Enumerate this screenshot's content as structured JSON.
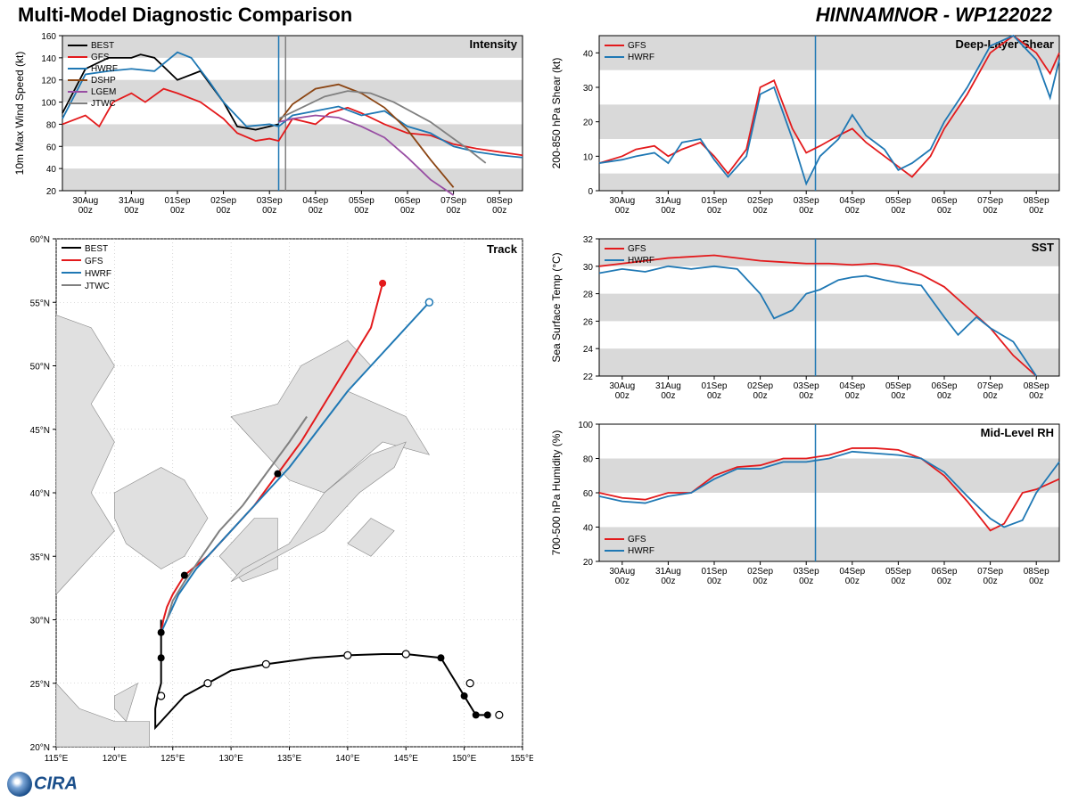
{
  "header": {
    "left": "Multi-Model Diagnostic Comparison",
    "right": "HINNAMNOR - WP122022"
  },
  "logo_text": "IRA",
  "x_dates": [
    "30Aug",
    "31Aug",
    "01Sep",
    "02Sep",
    "03Sep",
    "04Sep",
    "05Sep",
    "06Sep",
    "07Sep",
    "08Sep"
  ],
  "x_sub": "00z",
  "now_index": 4.2,
  "colors": {
    "BEST": "#000000",
    "GFS": "#e31a1c",
    "HWRF": "#1f78b4",
    "DSHP": "#8b4513",
    "LGEM": "#984ea3",
    "JTWC": "#808080",
    "grid": "#d0d0d0",
    "band": "#d9d9d9",
    "land": "#e0e0e0",
    "text": "#000000",
    "axis": "#000000"
  },
  "intensity": {
    "title": "Intensity",
    "ylabel": "10m Max Wind Speed (kt)",
    "ylim": [
      20,
      160
    ],
    "ytick": 20,
    "legend": [
      "BEST",
      "GFS",
      "HWRF",
      "DSHP",
      "LGEM",
      "JTWC"
    ],
    "bands": [
      [
        20,
        40
      ],
      [
        60,
        80
      ],
      [
        100,
        120
      ],
      [
        140,
        160
      ]
    ],
    "series": {
      "BEST": [
        [
          -0.5,
          90
        ],
        [
          0,
          130
        ],
        [
          0.5,
          140
        ],
        [
          1,
          140
        ],
        [
          1.2,
          143
        ],
        [
          1.5,
          140
        ],
        [
          2,
          120
        ],
        [
          2.5,
          128
        ],
        [
          3,
          100
        ],
        [
          3.3,
          78
        ],
        [
          3.7,
          75
        ],
        [
          4,
          78
        ],
        [
          4.2,
          80
        ]
      ],
      "GFS": [
        [
          -0.5,
          80
        ],
        [
          0,
          88
        ],
        [
          0.3,
          78
        ],
        [
          0.6,
          100
        ],
        [
          1,
          108
        ],
        [
          1.3,
          100
        ],
        [
          1.7,
          112
        ],
        [
          2,
          108
        ],
        [
          2.5,
          100
        ],
        [
          3,
          85
        ],
        [
          3.3,
          72
        ],
        [
          3.7,
          65
        ],
        [
          4,
          67
        ],
        [
          4.2,
          65
        ],
        [
          4.5,
          85
        ],
        [
          5,
          80
        ],
        [
          5.3,
          90
        ],
        [
          5.7,
          95
        ],
        [
          6,
          90
        ],
        [
          6.5,
          80
        ],
        [
          7,
          72
        ],
        [
          7.5,
          70
        ],
        [
          8,
          62
        ],
        [
          8.5,
          58
        ],
        [
          9,
          55
        ],
        [
          9.5,
          52
        ]
      ],
      "HWRF": [
        [
          -0.5,
          85
        ],
        [
          0,
          125
        ],
        [
          0.5,
          128
        ],
        [
          1,
          130
        ],
        [
          1.5,
          128
        ],
        [
          2,
          145
        ],
        [
          2.3,
          140
        ],
        [
          2.7,
          118
        ],
        [
          3,
          100
        ],
        [
          3.5,
          78
        ],
        [
          4,
          80
        ],
        [
          4.2,
          78
        ],
        [
          4.5,
          88
        ],
        [
          5,
          92
        ],
        [
          5.5,
          96
        ],
        [
          6,
          88
        ],
        [
          6.5,
          92
        ],
        [
          7,
          78
        ],
        [
          7.5,
          72
        ],
        [
          8,
          60
        ],
        [
          8.5,
          55
        ],
        [
          9,
          52
        ],
        [
          9.5,
          50
        ]
      ],
      "DSHP": [
        [
          4.2,
          82
        ],
        [
          4.5,
          98
        ],
        [
          5,
          112
        ],
        [
          5.5,
          116
        ],
        [
          6,
          108
        ],
        [
          6.5,
          95
        ],
        [
          7,
          75
        ],
        [
          7.5,
          48
        ],
        [
          8,
          23
        ]
      ],
      "LGEM": [
        [
          4.2,
          82
        ],
        [
          4.5,
          85
        ],
        [
          5,
          88
        ],
        [
          5.5,
          86
        ],
        [
          6,
          78
        ],
        [
          6.5,
          68
        ],
        [
          7,
          50
        ],
        [
          7.5,
          30
        ],
        [
          8,
          16
        ]
      ],
      "JTWC": [
        [
          4.2,
          85
        ],
        [
          4.7,
          95
        ],
        [
          5.2,
          105
        ],
        [
          5.7,
          110
        ],
        [
          6.2,
          108
        ],
        [
          6.7,
          100
        ],
        [
          7.5,
          82
        ],
        [
          8.3,
          58
        ],
        [
          8.7,
          45
        ]
      ]
    },
    "label_fontsize": 12
  },
  "shear": {
    "title": "Deep-Layer Shear",
    "ylabel": "200-850 hPa Shear (kt)",
    "ylim": [
      0,
      45
    ],
    "ytick": 10,
    "legend": [
      "GFS",
      "HWRF"
    ],
    "bands": [
      [
        0,
        5
      ],
      [
        15,
        25
      ],
      [
        35,
        45
      ]
    ],
    "series": {
      "GFS": [
        [
          -0.5,
          8
        ],
        [
          0,
          10
        ],
        [
          0.3,
          12
        ],
        [
          0.7,
          13
        ],
        [
          1,
          10
        ],
        [
          1.3,
          12
        ],
        [
          1.7,
          14
        ],
        [
          2,
          10
        ],
        [
          2.3,
          5
        ],
        [
          2.7,
          12
        ],
        [
          3,
          30
        ],
        [
          3.3,
          32
        ],
        [
          3.7,
          18
        ],
        [
          4,
          11
        ],
        [
          4.3,
          13
        ],
        [
          4.7,
          16
        ],
        [
          5,
          18
        ],
        [
          5.3,
          14
        ],
        [
          5.7,
          10
        ],
        [
          6,
          7
        ],
        [
          6.3,
          4
        ],
        [
          6.7,
          10
        ],
        [
          7,
          18
        ],
        [
          7.5,
          28
        ],
        [
          8,
          40
        ],
        [
          8.5,
          45
        ],
        [
          9,
          40
        ],
        [
          9.3,
          34
        ],
        [
          9.5,
          40
        ]
      ],
      "HWRF": [
        [
          -0.5,
          8
        ],
        [
          0,
          9
        ],
        [
          0.3,
          10
        ],
        [
          0.7,
          11
        ],
        [
          1,
          8
        ],
        [
          1.3,
          14
        ],
        [
          1.7,
          15
        ],
        [
          2,
          9
        ],
        [
          2.3,
          4
        ],
        [
          2.7,
          10
        ],
        [
          3,
          28
        ],
        [
          3.3,
          30
        ],
        [
          3.7,
          15
        ],
        [
          4,
          2
        ],
        [
          4.3,
          10
        ],
        [
          4.7,
          15
        ],
        [
          5,
          22
        ],
        [
          5.3,
          16
        ],
        [
          5.7,
          12
        ],
        [
          6,
          6
        ],
        [
          6.3,
          8
        ],
        [
          6.7,
          12
        ],
        [
          7,
          20
        ],
        [
          7.5,
          30
        ],
        [
          8,
          42
        ],
        [
          8.5,
          45
        ],
        [
          9,
          38
        ],
        [
          9.3,
          27
        ],
        [
          9.5,
          38
        ]
      ]
    }
  },
  "sst": {
    "title": "SST",
    "ylabel": "Sea Surface Temp (°C)",
    "ylim": [
      22,
      32
    ],
    "ytick": 2,
    "legend": [
      "GFS",
      "HWRF"
    ],
    "bands": [
      [
        22,
        24
      ],
      [
        26,
        28
      ],
      [
        30,
        32
      ]
    ],
    "series": {
      "GFS": [
        [
          -0.5,
          30
        ],
        [
          0,
          30.2
        ],
        [
          1,
          30.6
        ],
        [
          2,
          30.8
        ],
        [
          3,
          30.4
        ],
        [
          3.5,
          30.3
        ],
        [
          4,
          30.2
        ],
        [
          4.5,
          30.2
        ],
        [
          5,
          30.1
        ],
        [
          5.5,
          30.2
        ],
        [
          6,
          30
        ],
        [
          6.5,
          29.4
        ],
        [
          7,
          28.5
        ],
        [
          7.5,
          27
        ],
        [
          8,
          25.5
        ],
        [
          8.5,
          23.5
        ],
        [
          9,
          22
        ]
      ],
      "HWRF": [
        [
          -0.5,
          29.5
        ],
        [
          0,
          29.8
        ],
        [
          0.5,
          29.6
        ],
        [
          1,
          30
        ],
        [
          1.5,
          29.8
        ],
        [
          2,
          30
        ],
        [
          2.5,
          29.8
        ],
        [
          3,
          28
        ],
        [
          3.3,
          26.2
        ],
        [
          3.7,
          26.8
        ],
        [
          4,
          28
        ],
        [
          4.3,
          28.3
        ],
        [
          4.7,
          29
        ],
        [
          5,
          29.2
        ],
        [
          5.3,
          29.3
        ],
        [
          5.7,
          29
        ],
        [
          6,
          28.8
        ],
        [
          6.5,
          28.6
        ],
        [
          7,
          26.3
        ],
        [
          7.3,
          25
        ],
        [
          7.7,
          26.3
        ],
        [
          8,
          25.5
        ],
        [
          8.5,
          24.5
        ],
        [
          9,
          22
        ]
      ]
    }
  },
  "rh": {
    "title": "Mid-Level RH",
    "ylabel": "700-500 hPa Humidity (%)",
    "ylim": [
      20,
      100
    ],
    "ytick": 20,
    "legend": [
      "GFS",
      "HWRF"
    ],
    "legend_pos": "bottom-left",
    "bands": [
      [
        20,
        40
      ],
      [
        60,
        80
      ]
    ],
    "series": {
      "GFS": [
        [
          -0.5,
          60
        ],
        [
          0,
          57
        ],
        [
          0.5,
          56
        ],
        [
          1,
          60
        ],
        [
          1.5,
          60
        ],
        [
          2,
          70
        ],
        [
          2.5,
          75
        ],
        [
          3,
          76
        ],
        [
          3.5,
          80
        ],
        [
          4,
          80
        ],
        [
          4.5,
          82
        ],
        [
          5,
          86
        ],
        [
          5.5,
          86
        ],
        [
          6,
          85
        ],
        [
          6.5,
          80
        ],
        [
          7,
          70
        ],
        [
          7.5,
          55
        ],
        [
          8,
          38
        ],
        [
          8.3,
          42
        ],
        [
          8.7,
          60
        ],
        [
          9,
          62
        ],
        [
          9.5,
          68
        ]
      ],
      "HWRF": [
        [
          -0.5,
          58
        ],
        [
          0,
          55
        ],
        [
          0.5,
          54
        ],
        [
          1,
          58
        ],
        [
          1.5,
          60
        ],
        [
          2,
          68
        ],
        [
          2.5,
          74
        ],
        [
          3,
          74
        ],
        [
          3.5,
          78
        ],
        [
          4,
          78
        ],
        [
          4.5,
          80
        ],
        [
          5,
          84
        ],
        [
          5.5,
          83
        ],
        [
          6,
          82
        ],
        [
          6.5,
          80
        ],
        [
          7,
          72
        ],
        [
          7.5,
          58
        ],
        [
          8,
          45
        ],
        [
          8.3,
          40
        ],
        [
          8.7,
          44
        ],
        [
          9,
          60
        ],
        [
          9.5,
          78
        ]
      ]
    }
  },
  "track": {
    "title": "Track",
    "xlabel": "",
    "ylabel": "",
    "xlim": [
      115,
      155
    ],
    "ylim": [
      20,
      60
    ],
    "xtick": 5,
    "ytick": 5,
    "legend": [
      "BEST",
      "GFS",
      "HWRF",
      "JTWC"
    ],
    "land_paths": [
      "M115,54 L118,53 L120,50 L118,47 L120,44 L118,40 L120,37 L117,34 L115,32 Z",
      "M120,40 L124,42 L126,41 L128,38 L126,35 L124,34 L121,36 L120,38 Z",
      "M129,35 L132,38 L134,38 L134,34 L131,33 Z",
      "M130,46 L134,47 L136,50 L140,52 L142,50 L140,48 L145,46 L147,43 L143,44 L138,40 L135,41 L132,44 Z",
      "M130,33 L134,35 L138,37 L141,40 L144,42 L145,44 L142,43 L138,40 L135,36 L131,34 Z",
      "M115,25 L117,23 L120,22 L123,22 L123,20 L115,20 Z",
      "M120,24 L122,25 L121,22 L120,23 Z",
      "M140,36 L142,38 L144,37 L142,35 Z"
    ],
    "series": {
      "BEST": [
        [
          152,
          22.5
        ],
        [
          151,
          22.5
        ],
        [
          150,
          24
        ],
        [
          148,
          27
        ],
        [
          145,
          27.3
        ],
        [
          143,
          27.3
        ],
        [
          140,
          27.2
        ],
        [
          137,
          27
        ],
        [
          133,
          26.5
        ],
        [
          130,
          26
        ],
        [
          128,
          25
        ],
        [
          126,
          24
        ],
        [
          125,
          23
        ],
        [
          124,
          22
        ],
        [
          123.5,
          21.5
        ],
        [
          123.5,
          23
        ],
        [
          123.7,
          24
        ],
        [
          124,
          25
        ],
        [
          124,
          27
        ],
        [
          124,
          29
        ],
        [
          124,
          30
        ]
      ],
      "GFS": [
        [
          124,
          29
        ],
        [
          124.2,
          30
        ],
        [
          124.5,
          31
        ],
        [
          125,
          32
        ],
        [
          126,
          33.5
        ],
        [
          128,
          35
        ],
        [
          130,
          37
        ],
        [
          132,
          39
        ],
        [
          134,
          41.5
        ],
        [
          136,
          44
        ],
        [
          138,
          47
        ],
        [
          140,
          50
        ],
        [
          142,
          53
        ],
        [
          143,
          56.5
        ]
      ],
      "HWRF": [
        [
          124,
          29
        ],
        [
          124.5,
          30
        ],
        [
          125,
          31
        ],
        [
          125.5,
          32
        ],
        [
          127,
          34
        ],
        [
          129,
          36
        ],
        [
          131,
          38
        ],
        [
          133,
          40
        ],
        [
          135,
          42
        ],
        [
          137.5,
          45
        ],
        [
          140,
          48
        ],
        [
          143,
          51
        ],
        [
          146,
          54
        ],
        [
          147,
          55
        ]
      ],
      "JTWC": [
        [
          124.5,
          30
        ],
        [
          125,
          31.5
        ],
        [
          126,
          33
        ],
        [
          127.5,
          35
        ],
        [
          129,
          37
        ],
        [
          131,
          39
        ],
        [
          133,
          41.5
        ],
        [
          135,
          44
        ],
        [
          136.5,
          46
        ]
      ]
    },
    "markers": {
      "BEST_filled": [
        [
          152,
          22.5
        ],
        [
          151,
          22.5
        ],
        [
          150,
          24
        ],
        [
          148,
          27
        ],
        [
          124,
          29
        ],
        [
          124,
          27
        ],
        [
          126,
          33.5
        ],
        [
          134,
          41.5
        ]
      ],
      "BEST_open": [
        [
          145,
          27.3
        ],
        [
          140,
          27.2
        ],
        [
          133,
          26.5
        ],
        [
          128,
          25
        ],
        [
          124,
          24
        ],
        [
          150.5,
          25
        ],
        [
          153,
          22.5
        ]
      ],
      "GFS_end": [
        143,
        56.5
      ],
      "HWRF_end": [
        147,
        55
      ]
    }
  },
  "fontsize": {
    "title": 13,
    "axis": 12,
    "tick": 10,
    "legend": 10
  }
}
